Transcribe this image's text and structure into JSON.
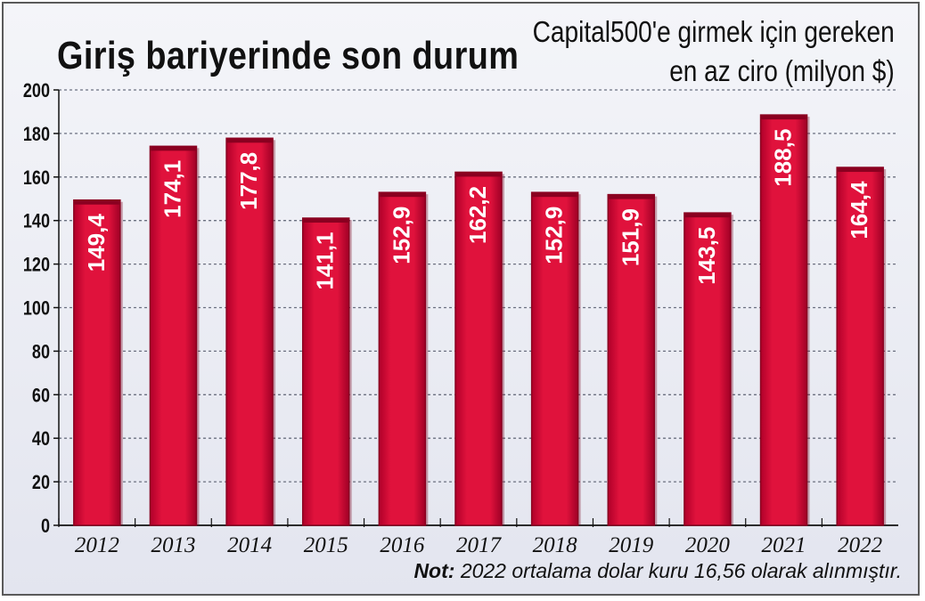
{
  "title": "Giriş bariyerinde son durum",
  "subtitle_line1": "Capital500'e girmek için gereken",
  "subtitle_line2": "en az ciro (milyon $)",
  "note_label": "Not:",
  "note_text": "2022 ortalama dolar kuru 16,56 olarak alınmıştır.",
  "colors": {
    "bar": "#e0123c",
    "bar_dark": "#8a0020",
    "grid": "#6b7080",
    "axis": "#111111"
  },
  "chart_data": {
    "type": "bar",
    "title": "Giriş bariyerinde son durum",
    "ylabel": "Capital500'e girmek için gereken en az ciro (milyon $)",
    "xlabel": "",
    "categories": [
      "2012",
      "2013",
      "2014",
      "2015",
      "2016",
      "2017",
      "2018",
      "2019",
      "2020",
      "2021",
      "2022"
    ],
    "values": [
      149.4,
      174.1,
      177.8,
      141.1,
      152.9,
      162.2,
      152.9,
      151.9,
      143.5,
      188.5,
      164.4
    ],
    "value_labels": [
      "149,4",
      "174,1",
      "177,8",
      "141,1",
      "152,9",
      "162,2",
      "152,9",
      "151,9",
      "143,5",
      "188,5",
      "164,4"
    ],
    "ylim": [
      0,
      200
    ],
    "yticks": [
      0,
      20,
      40,
      60,
      80,
      100,
      120,
      140,
      160,
      180,
      200
    ],
    "grid": true,
    "legend": "none"
  }
}
